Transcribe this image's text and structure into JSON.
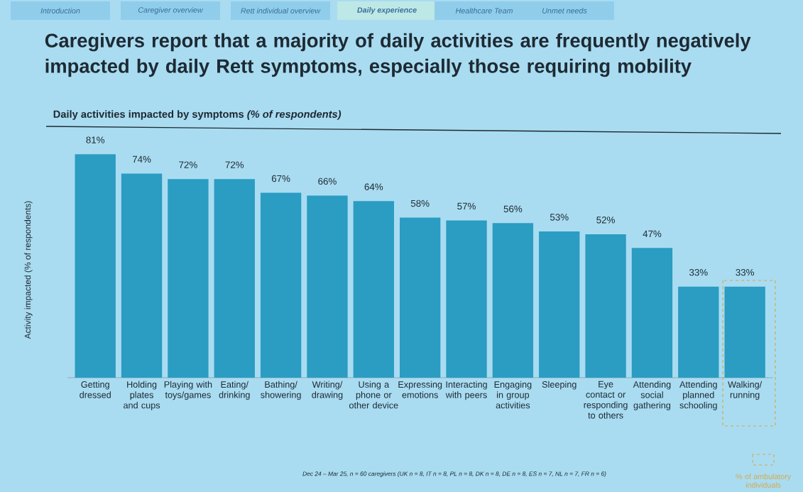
{
  "chart_data": {
    "type": "bar",
    "title": "Caregivers report that a majority of daily activities are frequently negatively impacted by daily Rett symptoms, especially those requiring mobility",
    "subtitle": "Daily activities impacted by symptoms *(% of respondents)*",
    "ylabel": "Activity impacted (% of respondents)",
    "categories": [
      "Getting dressed",
      "Holding plates and cups",
      "Playing with toys/games",
      "Eating/ drinking",
      "Bathing/ showering",
      "Writing/ drawing",
      "Using a phone or other device",
      "Expressing emotions",
      "Interacting with peers",
      "Engaging in group activities",
      "Sleeping",
      "Eye contact or responding to others",
      "Attending social gathering",
      "Attending planned schooling",
      "Walking/ running"
    ],
    "values": [
      81,
      74,
      72,
      72,
      67,
      66,
      64,
      58,
      57,
      56,
      53,
      52,
      47,
      33,
      33
    ],
    "value_labels": [
      "81%",
      "74%",
      "72%",
      "72%",
      "67%",
      "66%",
      "64%",
      "58%",
      "57%",
      "56%",
      "53%",
      "52%",
      "47%",
      "33%",
      "33%"
    ],
    "color": "#2b9cc2",
    "annotations": [
      "Introduction",
      "Caregiver overview",
      "Rett individual overview",
      "Daily experience",
      "Healthcare Team",
      "Unmet needs",
      "Dec 24 – Mar 25, n = 60 caregivers (UK n = 8, IT n = 8, PL n = 8, DK n = 8, DE n = 8, ES n = 7, NL n = 7, FR n = 6)",
      "% of ambulatory individuals"
    ]
  }
}
